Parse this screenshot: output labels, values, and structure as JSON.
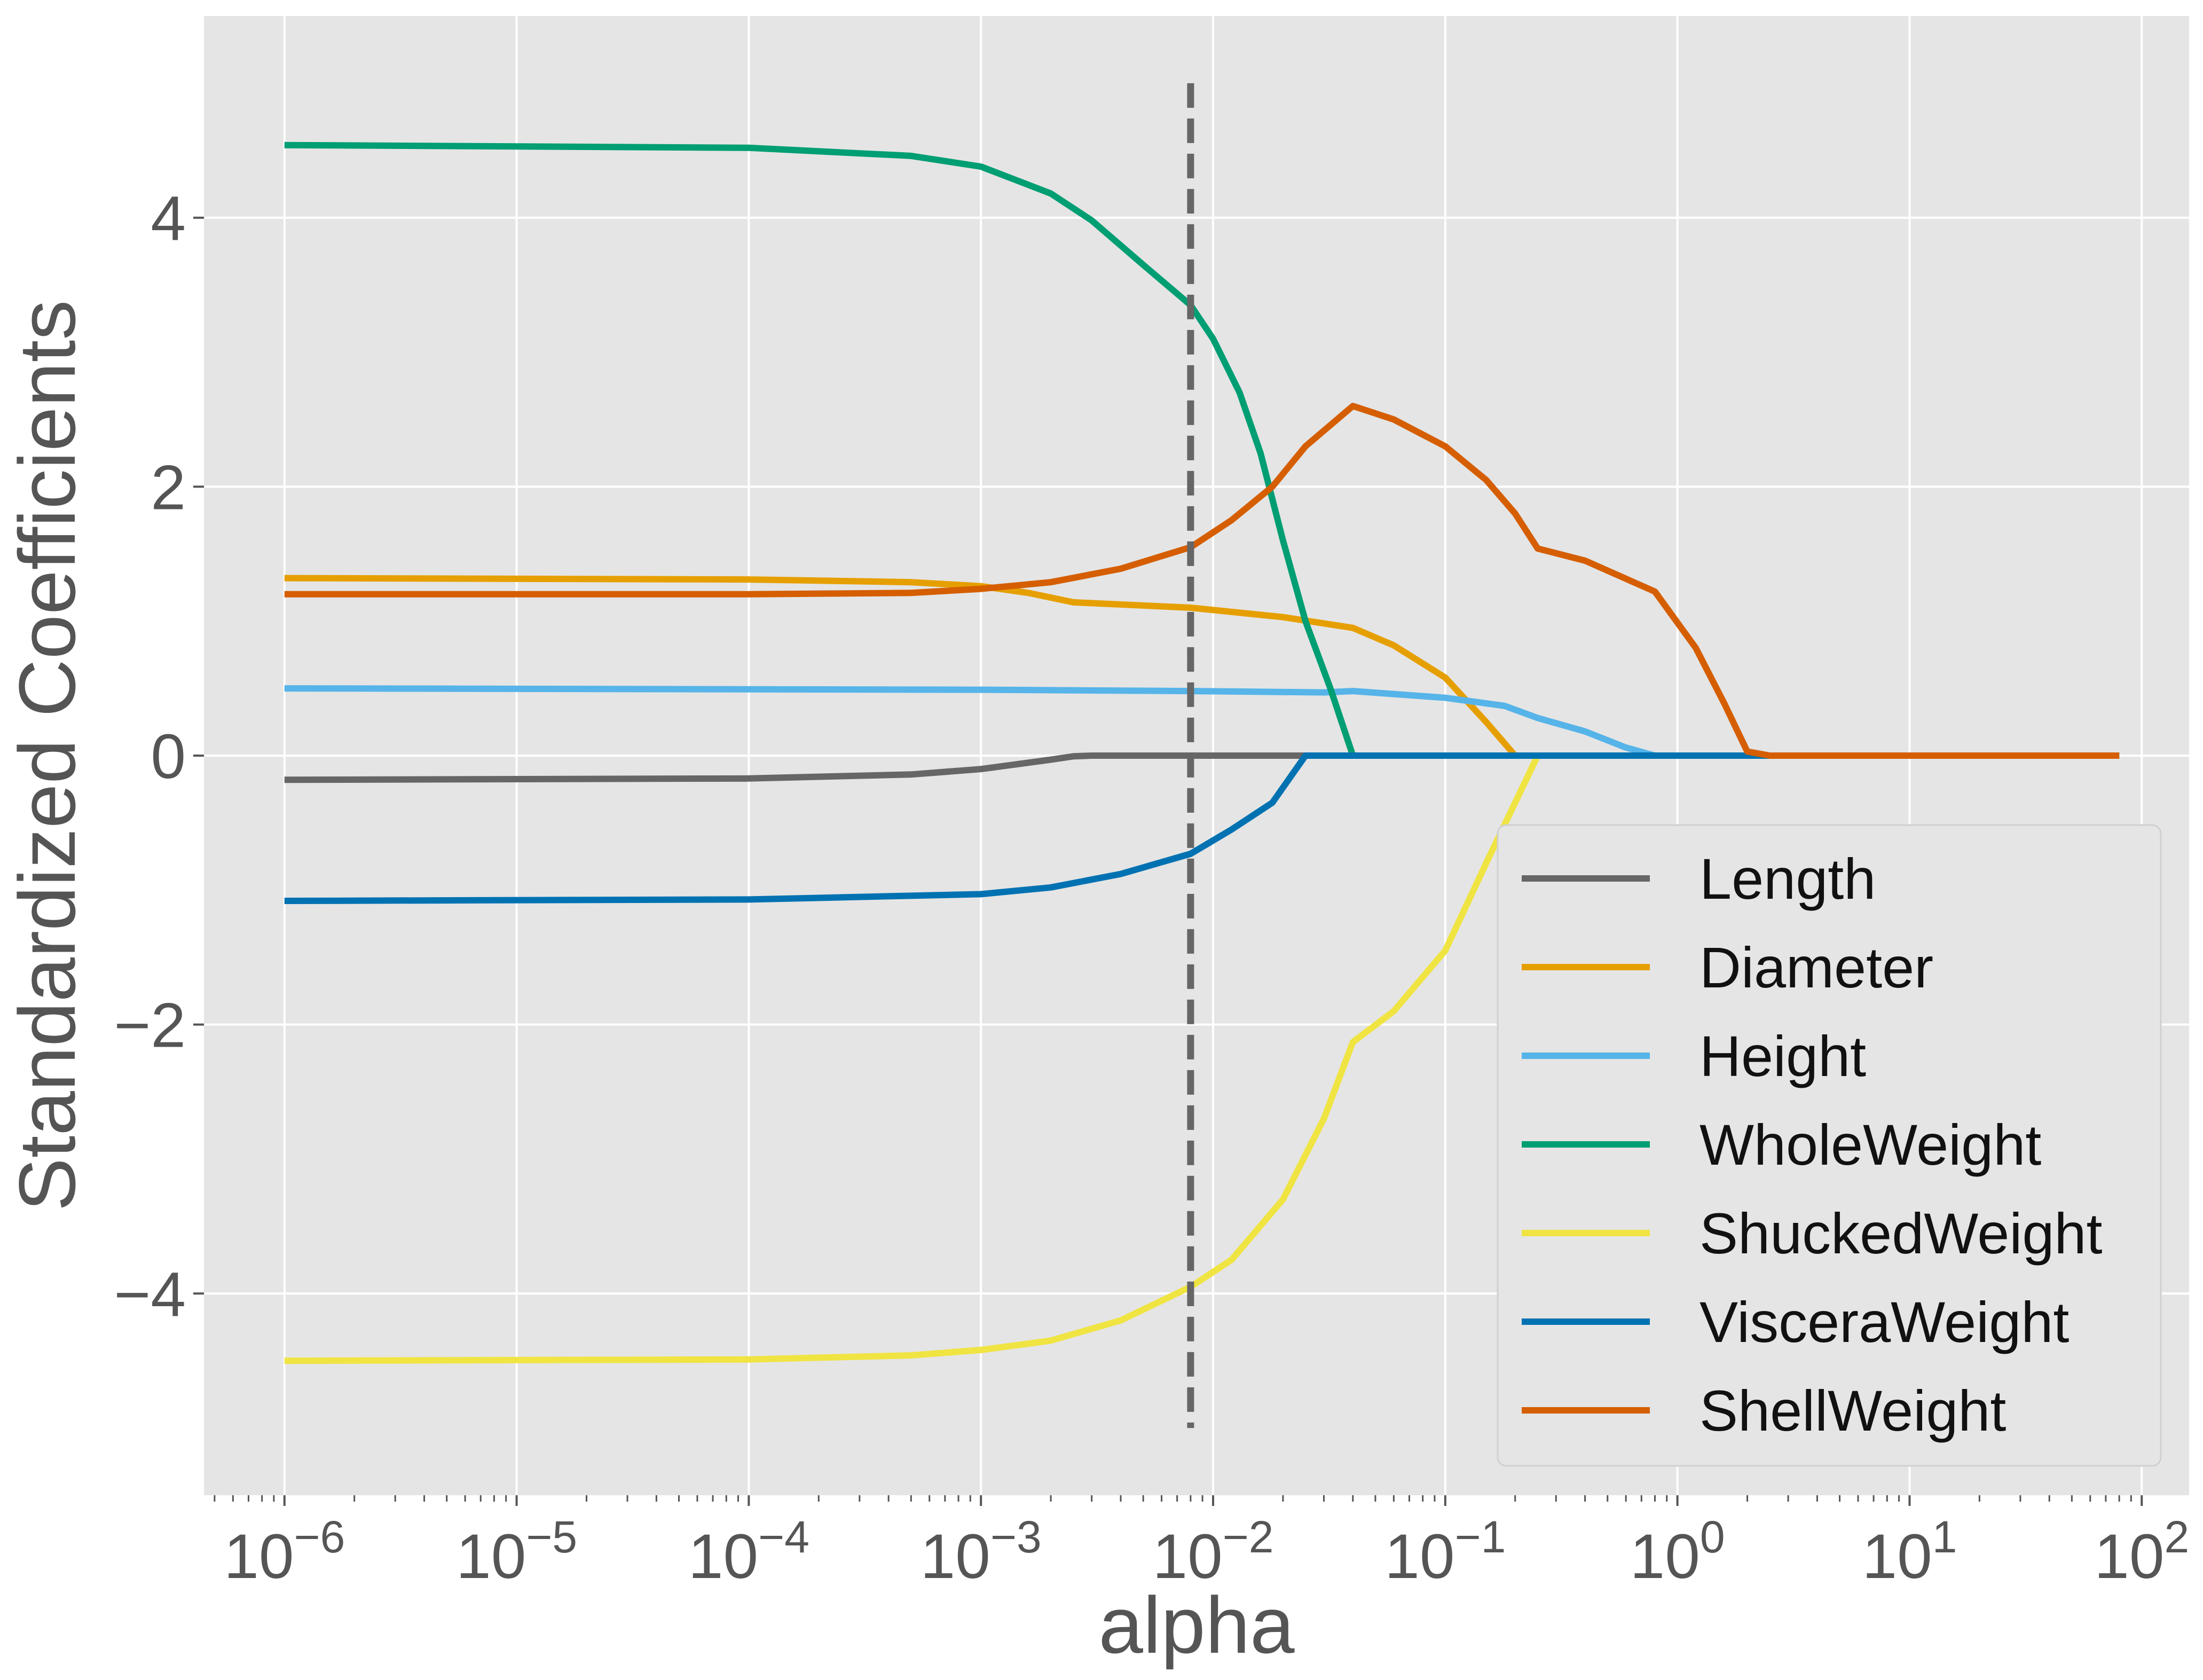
{
  "chart_data": {
    "type": "line",
    "xlabel": "alpha",
    "ylabel": "Standardized Coefficients",
    "xscale": "log",
    "xlim": [
      4.5e-07,
      160
    ],
    "ylim": [
      -5.5,
      5.5
    ],
    "grid": true,
    "background": "#e5e5e5",
    "grid_color": "#ffffff",
    "legend_placement": "bottom-right",
    "x_ticks": [
      {
        "value": 1e-06,
        "base": "10",
        "exp": "−6"
      },
      {
        "value": 1e-05,
        "base": "10",
        "exp": "−5"
      },
      {
        "value": 0.0001,
        "base": "10",
        "exp": "−4"
      },
      {
        "value": 0.001,
        "base": "10",
        "exp": "−3"
      },
      {
        "value": 0.01,
        "base": "10",
        "exp": "−2"
      },
      {
        "value": 0.1,
        "base": "10",
        "exp": "−1"
      },
      {
        "value": 1,
        "base": "10",
        "exp": "0"
      },
      {
        "value": 10,
        "base": "10",
        "exp": "1"
      },
      {
        "value": 100,
        "base": "10",
        "exp": "2"
      }
    ],
    "y_ticks": [
      {
        "value": 4,
        "label": "4"
      },
      {
        "value": 2,
        "label": "2"
      },
      {
        "value": 0,
        "label": "0"
      },
      {
        "value": -2,
        "label": "−2"
      },
      {
        "value": -4,
        "label": "−4"
      }
    ],
    "vline": {
      "x": 0.008,
      "y": [
        -5,
        5
      ],
      "color": "#666666",
      "style": "dashed"
    },
    "series": [
      {
        "name": "Length",
        "color": "#666666",
        "points": [
          [
            1e-06,
            -0.18
          ],
          [
            0.0001,
            -0.17
          ],
          [
            0.0005,
            -0.14
          ],
          [
            0.001,
            -0.1
          ],
          [
            0.002,
            -0.03
          ],
          [
            0.0025,
            -0.005
          ],
          [
            0.003,
            0
          ],
          [
            80,
            0
          ]
        ]
      },
      {
        "name": "Diameter",
        "color": "#e69f00",
        "points": [
          [
            1e-06,
            1.32
          ],
          [
            0.0001,
            1.31
          ],
          [
            0.0005,
            1.29
          ],
          [
            0.001,
            1.26
          ],
          [
            0.0016,
            1.21
          ],
          [
            0.0025,
            1.14
          ],
          [
            0.008,
            1.1
          ],
          [
            0.02,
            1.03
          ],
          [
            0.04,
            0.95
          ],
          [
            0.06,
            0.82
          ],
          [
            0.1,
            0.58
          ],
          [
            0.15,
            0.25
          ],
          [
            0.2,
            0
          ],
          [
            80,
            0
          ]
        ]
      },
      {
        "name": "Height",
        "color": "#56b4e9",
        "points": [
          [
            1e-06,
            0.5
          ],
          [
            0.001,
            0.49
          ],
          [
            0.008,
            0.48
          ],
          [
            0.03,
            0.47
          ],
          [
            0.04,
            0.48
          ],
          [
            0.1,
            0.43
          ],
          [
            0.18,
            0.37
          ],
          [
            0.25,
            0.28
          ],
          [
            0.4,
            0.18
          ],
          [
            0.6,
            0.06
          ],
          [
            0.8,
            0
          ],
          [
            80,
            0
          ]
        ]
      },
      {
        "name": "WholeWeight",
        "color": "#009e73",
        "points": [
          [
            1e-06,
            4.54
          ],
          [
            0.0001,
            4.52
          ],
          [
            0.0005,
            4.46
          ],
          [
            0.001,
            4.38
          ],
          [
            0.002,
            4.18
          ],
          [
            0.003,
            3.98
          ],
          [
            0.005,
            3.65
          ],
          [
            0.008,
            3.35
          ],
          [
            0.01,
            3.1
          ],
          [
            0.013,
            2.7
          ],
          [
            0.016,
            2.25
          ],
          [
            0.02,
            1.6
          ],
          [
            0.025,
            1
          ],
          [
            0.032,
            0.5
          ],
          [
            0.04,
            0
          ],
          [
            80,
            0
          ]
        ]
      },
      {
        "name": "ShuckedWeight",
        "color": "#f0e442",
        "points": [
          [
            1e-06,
            -4.5
          ],
          [
            0.0001,
            -4.49
          ],
          [
            0.0005,
            -4.46
          ],
          [
            0.001,
            -4.42
          ],
          [
            0.002,
            -4.35
          ],
          [
            0.004,
            -4.2
          ],
          [
            0.008,
            -3.95
          ],
          [
            0.012,
            -3.75
          ],
          [
            0.02,
            -3.3
          ],
          [
            0.03,
            -2.7
          ],
          [
            0.04,
            -2.13
          ],
          [
            0.06,
            -1.9
          ],
          [
            0.1,
            -1.45
          ],
          [
            0.15,
            -0.8
          ],
          [
            0.2,
            -0.35
          ],
          [
            0.25,
            0
          ],
          [
            80,
            0
          ]
        ]
      },
      {
        "name": "VisceraWeight",
        "color": "#0072b2",
        "points": [
          [
            1e-06,
            -1.08
          ],
          [
            0.0001,
            -1.07
          ],
          [
            0.001,
            -1.03
          ],
          [
            0.002,
            -0.98
          ],
          [
            0.004,
            -0.88
          ],
          [
            0.008,
            -0.73
          ],
          [
            0.012,
            -0.55
          ],
          [
            0.018,
            -0.35
          ],
          [
            0.025,
            0
          ],
          [
            80,
            0
          ]
        ]
      },
      {
        "name": "ShellWeight",
        "color": "#d55e00",
        "points": [
          [
            1e-06,
            1.2
          ],
          [
            0.0001,
            1.2
          ],
          [
            0.0005,
            1.21
          ],
          [
            0.001,
            1.24
          ],
          [
            0.002,
            1.29
          ],
          [
            0.004,
            1.39
          ],
          [
            0.008,
            1.55
          ],
          [
            0.012,
            1.75
          ],
          [
            0.018,
            2
          ],
          [
            0.025,
            2.3
          ],
          [
            0.04,
            2.6
          ],
          [
            0.06,
            2.5
          ],
          [
            0.1,
            2.3
          ],
          [
            0.15,
            2.05
          ],
          [
            0.2,
            1.8
          ],
          [
            0.25,
            1.54
          ],
          [
            0.4,
            1.45
          ],
          [
            0.8,
            1.22
          ],
          [
            1.2,
            0.8
          ],
          [
            1.6,
            0.38
          ],
          [
            2,
            0.03
          ],
          [
            2.5,
            0
          ],
          [
            80,
            0
          ]
        ]
      }
    ]
  }
}
